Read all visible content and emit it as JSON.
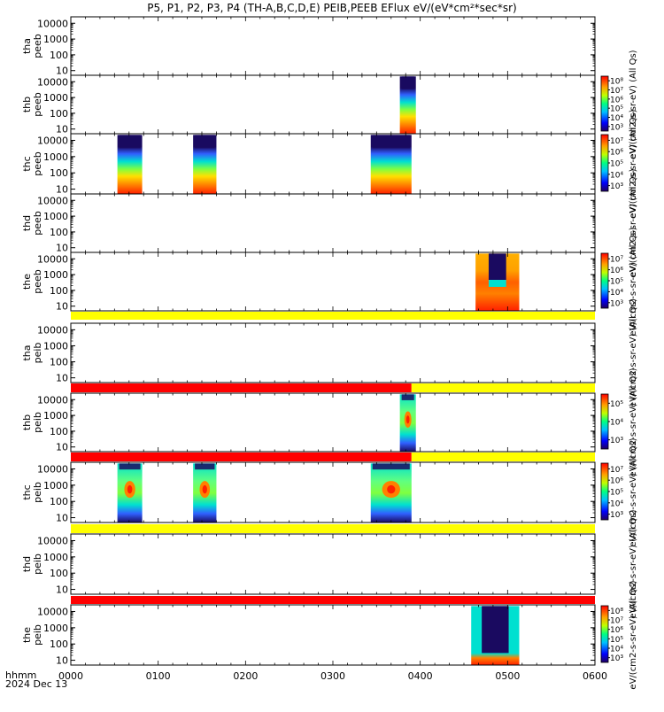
{
  "title": "P5, P1, P2, P3, P4 (TH-A,B,C,D,E) PEIB,PEEB EFlux eV/(eV*cm²*sec*sr)",
  "colors": {
    "frame": "#000000",
    "yellow_bar": "#ffff00",
    "red_bar": "#ff0000",
    "spec_dark": "#1a0a60",
    "spec_blue": "#3060ff",
    "spec_cyan": "#00e0d0",
    "spec_green": "#80ff40",
    "spec_yellow": "#ffe000",
    "spec_orange": "#ff8000",
    "spec_red": "#ff2000"
  },
  "x_axis": {
    "tick_labels": [
      "0000",
      "0100",
      "0200",
      "0300",
      "0400",
      "0500",
      "0600"
    ],
    "range_minutes": [
      0,
      360
    ],
    "label_line1": "hhmm",
    "label_line2": "2024 Dec 13"
  },
  "chart_data": {
    "type": "heatmap",
    "x_unit": "minutes since 0000",
    "y_scale": "log",
    "y_tick_labels": [
      "10",
      "100",
      "1000",
      "10000"
    ],
    "panels": [
      {
        "id": "tha_peeb",
        "label1": "tha",
        "label2": "peeb",
        "y_top": "10000",
        "colorbar": false,
        "bars": [],
        "blocks": []
      },
      {
        "id": "thb_peeb",
        "label1": "thb",
        "label2": "peeb",
        "y_top": "10000",
        "colorbar": true,
        "cb_ticks": [
          "10³",
          "10⁴",
          "10⁵",
          "10⁶",
          "10⁷",
          "10⁸"
        ],
        "cb_label": "eV/(cm2-s-sr-eV) (All Qs)",
        "bars": [],
        "blocks": [
          {
            "x0": 226,
            "x1": 237,
            "type": "electron"
          }
        ]
      },
      {
        "id": "thc_peeb",
        "label1": "thc",
        "label2": "peeb",
        "y_top": "10000",
        "colorbar": true,
        "cb_ticks": [
          "10³",
          "10⁴",
          "10⁵",
          "10⁶",
          "10⁷"
        ],
        "cb_label": "eV/(cm2-s-sr-eV) (All Qs)",
        "bars": [],
        "blocks": [
          {
            "x0": 32,
            "x1": 49,
            "type": "electron"
          },
          {
            "x0": 84,
            "x1": 100,
            "type": "electron"
          },
          {
            "x0": 206,
            "x1": 234,
            "type": "electron"
          }
        ]
      },
      {
        "id": "thd_peeb",
        "label1": "thd",
        "label2": "peeb",
        "y_top": "10000",
        "colorbar": false,
        "cb_label": "eV/(cm2-s-sr-eV) (All Qs)",
        "bars": [],
        "blocks": []
      },
      {
        "id": "the_peeb",
        "label1": "the",
        "label2": "peeb",
        "y_top": "10000",
        "colorbar": true,
        "cb_ticks": [
          "10³",
          "10⁴",
          "10⁵",
          "10⁶",
          "10⁷"
        ],
        "cb_label": "eV/(cm2-s-sr-eV) (All Qs)",
        "bars": [
          {
            "x0": 0,
            "x1": 360,
            "color": "yellow"
          }
        ],
        "blocks": [
          {
            "x0": 278,
            "x1": 308,
            "type": "electron_e"
          }
        ]
      },
      {
        "id": "tha_peib",
        "label1": "tha",
        "label2": "peib",
        "y_top": "10000",
        "colorbar": false,
        "cb_label": "eV/(cm2-s-sr-eV) (All Qs)",
        "bars": [
          {
            "x0": 0,
            "x1": 234,
            "color": "red"
          },
          {
            "x0": 234,
            "x1": 360,
            "color": "yellow"
          }
        ],
        "blocks": []
      },
      {
        "id": "thb_peib",
        "label1": "thb",
        "label2": "peib",
        "y_top": "10000",
        "colorbar": true,
        "cb_ticks": [
          "10³",
          "10⁴",
          "10⁵"
        ],
        "cb_label": "eV/(cm2-s-sr-eV) (All Qs)",
        "bars": [
          {
            "x0": 0,
            "x1": 234,
            "color": "red"
          },
          {
            "x0": 234,
            "x1": 360,
            "color": "yellow"
          }
        ],
        "blocks": [
          {
            "x0": 226,
            "x1": 237,
            "type": "ion"
          }
        ]
      },
      {
        "id": "thc_peib",
        "label1": "thc",
        "label2": "peib",
        "y_top": "10000",
        "colorbar": true,
        "cb_ticks": [
          "10³",
          "10⁴",
          "10⁵",
          "10⁶",
          "10⁷"
        ],
        "cb_label": "eV/(cm2-s-sr-eV) (All Qs)",
        "bars": [
          {
            "x0": 0,
            "x1": 360,
            "color": "yellow"
          }
        ],
        "blocks": [
          {
            "x0": 32,
            "x1": 49,
            "type": "ion"
          },
          {
            "x0": 84,
            "x1": 100,
            "type": "ion"
          },
          {
            "x0": 206,
            "x1": 234,
            "type": "ion"
          }
        ]
      },
      {
        "id": "thd_peib",
        "label1": "thd",
        "label2": "peib",
        "y_top": "10000",
        "colorbar": false,
        "cb_label": "eV/(cm2-s-sr-eV) (All Qs)",
        "bars": [
          {
            "x0": 0,
            "x1": 360,
            "color": "red"
          }
        ],
        "blocks": []
      },
      {
        "id": "the_peib",
        "label1": "the",
        "label2": "peib",
        "y_top": "10000",
        "colorbar": true,
        "cb_ticks": [
          "10³",
          "10⁴",
          "10⁵",
          "10⁶",
          "10⁷",
          "10⁸"
        ],
        "cb_label": "eV/(cm2-s-sr-eV) (All Qs)",
        "bars": [],
        "blocks": [
          {
            "x0": 275,
            "x1": 308,
            "type": "ion_e"
          }
        ]
      }
    ]
  }
}
